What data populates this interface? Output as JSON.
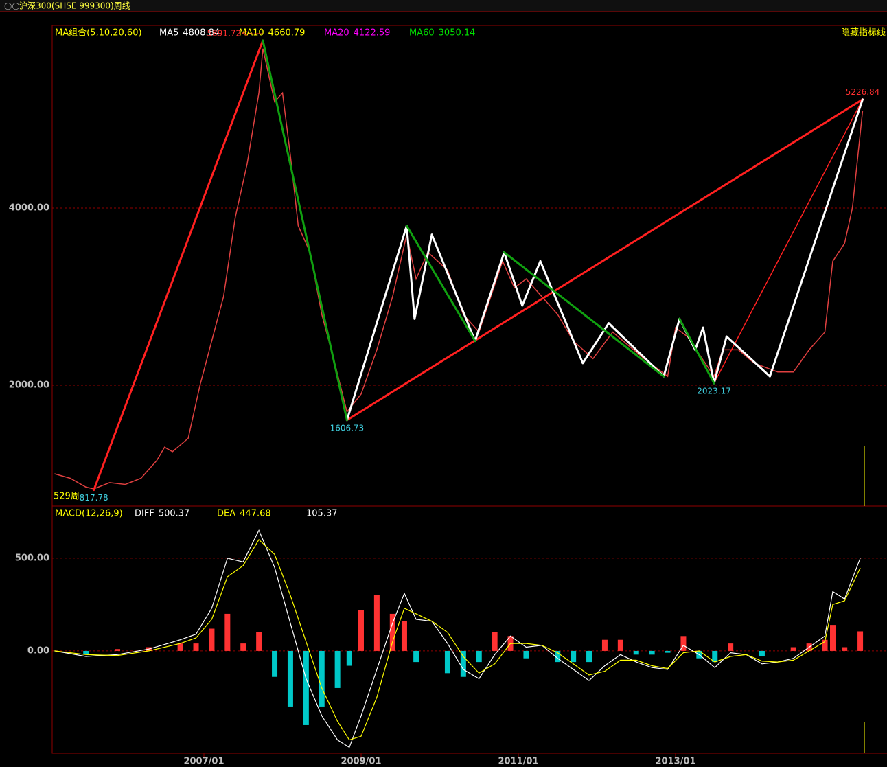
{
  "chart_data": {
    "type": "stock",
    "title": "沪深300(SHSE 999300)周线",
    "period_label": "529周",
    "xlim": [
      2005.07,
      2015.69
    ],
    "xticks": [
      {
        "value": 2007,
        "label": "2007/01"
      },
      {
        "value": 2009,
        "label": "2009/01"
      },
      {
        "value": 2011,
        "label": "2011/01"
      },
      {
        "value": 2013,
        "label": "2013/01"
      }
    ],
    "price_panel": {
      "indicator": "MA组合(5,10,20,60)",
      "legend": [
        {
          "name": "MA5",
          "value": 4808.84,
          "color": "#ffffff"
        },
        {
          "name": "MA10",
          "value": 4660.79,
          "color": "#ffff00"
        },
        {
          "name": "MA20",
          "value": 4122.59,
          "color": "#ff00ff"
        },
        {
          "name": "MA60",
          "value": 3050.14,
          "color": "#00e000"
        }
      ],
      "hide_button": "隐藏指标线",
      "ylim": [
        636,
        6062
      ],
      "yticks": [
        {
          "value": 2000,
          "label": "2000.00"
        },
        {
          "value": 4000,
          "label": "4000.00"
        }
      ],
      "grid": true,
      "price": {
        "color": "#e04040",
        "x": [
          2005.1,
          2005.3,
          2005.5,
          2005.6,
          2005.8,
          2006.0,
          2006.2,
          2006.4,
          2006.5,
          2006.6,
          2006.8,
          2006.95,
          2007.1,
          2007.25,
          2007.4,
          2007.55,
          2007.7,
          2007.75,
          2007.9,
          2008.0,
          2008.1,
          2008.2,
          2008.35,
          2008.5,
          2008.65,
          2008.82,
          2009.0,
          2009.2,
          2009.4,
          2009.58,
          2009.7,
          2009.85,
          2010.1,
          2010.3,
          2010.5,
          2010.8,
          2010.95,
          2011.1,
          2011.3,
          2011.5,
          2011.7,
          2011.95,
          2012.2,
          2012.4,
          2012.6,
          2012.9,
          2013.0,
          2013.15,
          2013.49,
          2013.6,
          2013.8,
          2014.0,
          2014.3,
          2014.5,
          2014.7,
          2014.9,
          2015.0,
          2015.15,
          2015.25,
          2015.38
        ],
        "values": [
          1000,
          950,
          850,
          830,
          900,
          880,
          950,
          1150,
          1300,
          1250,
          1400,
          2000,
          2500,
          3000,
          3900,
          4500,
          5300,
          5800,
          5200,
          5300,
          4600,
          3800,
          3500,
          2800,
          2300,
          1700,
          1900,
          2400,
          3000,
          3700,
          3200,
          3500,
          3300,
          2800,
          2600,
          3400,
          3100,
          3200,
          3000,
          2800,
          2500,
          2300,
          2600,
          2450,
          2300,
          2100,
          2650,
          2550,
          2100,
          2400,
          2400,
          2250,
          2150,
          2150,
          2400,
          2600,
          3400,
          3600,
          4000,
          5100
        ]
      },
      "zigzags": [
        {
          "color": "#ff2020",
          "width": 3,
          "points": [
            {
              "x": 2005.6,
              "y": 817.78
            },
            {
              "x": 2007.75,
              "y": 5891.72
            }
          ]
        },
        {
          "color": "#ff2020",
          "width": 3,
          "points": [
            {
              "x": 2008.82,
              "y": 1606.73
            },
            {
              "x": 2015.38,
              "y": 5226.84
            }
          ]
        },
        {
          "color": "#ff2020",
          "width": 1.5,
          "points": [
            {
              "x": 2013.49,
              "y": 2023.17
            },
            {
              "x": 2015.38,
              "y": 5226.84
            }
          ]
        },
        {
          "color": "#ffffff",
          "width": 3,
          "points": [
            {
              "x": 2008.82,
              "y": 1606.73
            },
            {
              "x": 2009.58,
              "y": 3800
            },
            {
              "x": 2009.68,
              "y": 2750
            },
            {
              "x": 2009.9,
              "y": 3700
            },
            {
              "x": 2010.45,
              "y": 2500
            },
            {
              "x": 2010.82,
              "y": 3500
            },
            {
              "x": 2011.05,
              "y": 2900
            },
            {
              "x": 2011.28,
              "y": 3400
            },
            {
              "x": 2011.82,
              "y": 2250
            },
            {
              "x": 2012.15,
              "y": 2700
            },
            {
              "x": 2012.85,
              "y": 2100
            },
            {
              "x": 2013.05,
              "y": 2750
            },
            {
              "x": 2013.25,
              "y": 2400
            },
            {
              "x": 2013.35,
              "y": 2650
            },
            {
              "x": 2013.49,
              "y": 2023.17
            },
            {
              "x": 2013.65,
              "y": 2550
            },
            {
              "x": 2014.2,
              "y": 2100
            },
            {
              "x": 2015.38,
              "y": 5226.84
            }
          ]
        },
        {
          "color": "#10a010",
          "width": 3,
          "points": [
            {
              "x": 2007.75,
              "y": 5891.72
            },
            {
              "x": 2008.82,
              "y": 1606.73
            }
          ]
        },
        {
          "color": "#10a010",
          "width": 3,
          "points": [
            {
              "x": 2009.58,
              "y": 3800
            },
            {
              "x": 2010.45,
              "y": 2500
            }
          ]
        },
        {
          "color": "#10a010",
          "width": 3,
          "points": [
            {
              "x": 2010.82,
              "y": 3500
            },
            {
              "x": 2012.85,
              "y": 2100
            }
          ]
        },
        {
          "color": "#10a010",
          "width": 3,
          "points": [
            {
              "x": 2013.05,
              "y": 2750
            },
            {
              "x": 2013.49,
              "y": 2023.17
            }
          ]
        }
      ],
      "annotations": [
        {
          "label": "5891.72<-----",
          "value": 5891.72,
          "x": 2007.75,
          "color": "#ff3030"
        },
        {
          "value": 1606.73,
          "x": 2008.82,
          "color": "#40d0e0"
        },
        {
          "value": 2023.17,
          "x": 2013.49,
          "color": "#40d0e0"
        },
        {
          "value": 5226.84,
          "x": 2015.38,
          "color": "#ff3030"
        },
        {
          "value": 817.78,
          "x": 2005.6,
          "color": "#40d0e0"
        }
      ]
    },
    "macd_panel": {
      "indicator": "MACD(12,26,9)",
      "legend": [
        {
          "name": "DIFF",
          "value": 500.37,
          "color": "#ffffff"
        },
        {
          "name": "DEA",
          "value": 447.68,
          "color": "#ffff00"
        },
        {
          "value": 105.37,
          "color": "#ffffff"
        }
      ],
      "ylim": [
        -552,
        781
      ],
      "yticks": [
        {
          "value": 0,
          "label": "0.00"
        },
        {
          "value": 500,
          "label": "500.00"
        }
      ],
      "grid": true,
      "diff_color": "#ffffff",
      "dea_color": "#ffff00",
      "up_color": "#ff3232",
      "down_color": "#00c8c8",
      "x": [
        2005.1,
        2005.5,
        2005.9,
        2006.3,
        2006.7,
        2006.9,
        2007.1,
        2007.3,
        2007.5,
        2007.7,
        2007.9,
        2008.1,
        2008.3,
        2008.5,
        2008.7,
        2008.85,
        2009.0,
        2009.2,
        2009.4,
        2009.55,
        2009.7,
        2009.9,
        2010.1,
        2010.3,
        2010.5,
        2010.7,
        2010.9,
        2011.1,
        2011.3,
        2011.5,
        2011.7,
        2011.9,
        2012.1,
        2012.3,
        2012.5,
        2012.7,
        2012.9,
        2013.1,
        2013.3,
        2013.5,
        2013.7,
        2013.9,
        2014.1,
        2014.3,
        2014.5,
        2014.7,
        2014.9,
        2015.0,
        2015.15,
        2015.35
      ],
      "diff": [
        0,
        -30,
        -20,
        10,
        60,
        90,
        230,
        500,
        480,
        650,
        450,
        150,
        -150,
        -350,
        -480,
        -520,
        -350,
        -100,
        150,
        310,
        170,
        160,
        40,
        -100,
        -150,
        -20,
        80,
        20,
        30,
        -40,
        -100,
        -160,
        -80,
        -20,
        -60,
        -90,
        -100,
        30,
        -20,
        -90,
        -10,
        -20,
        -70,
        -60,
        -40,
        20,
        80,
        320,
        280,
        500.37
      ],
      "dea": [
        0,
        -20,
        -25,
        0,
        40,
        70,
        170,
        400,
        460,
        600,
        520,
        300,
        50,
        -200,
        -380,
        -480,
        -460,
        -250,
        50,
        230,
        200,
        160,
        100,
        -30,
        -120,
        -70,
        40,
        40,
        30,
        -10,
        -70,
        -130,
        -110,
        -50,
        -50,
        -80,
        -95,
        -10,
        0,
        -60,
        -30,
        -20,
        -55,
        -60,
        -50,
        0,
        50,
        250,
        270,
        447.68
      ],
      "hist": [
        0,
        -20,
        10,
        20,
        40,
        40,
        120,
        200,
        40,
        100,
        -140,
        -300,
        -400,
        -300,
        -200,
        -80,
        220,
        300,
        200,
        160,
        -60,
        0,
        -120,
        -140,
        -60,
        100,
        80,
        -40,
        0,
        -60,
        -60,
        -60,
        60,
        60,
        -20,
        -20,
        -10,
        80,
        -40,
        -60,
        40,
        0,
        -30,
        0,
        20,
        40,
        60,
        140,
        20,
        105.37
      ]
    }
  }
}
